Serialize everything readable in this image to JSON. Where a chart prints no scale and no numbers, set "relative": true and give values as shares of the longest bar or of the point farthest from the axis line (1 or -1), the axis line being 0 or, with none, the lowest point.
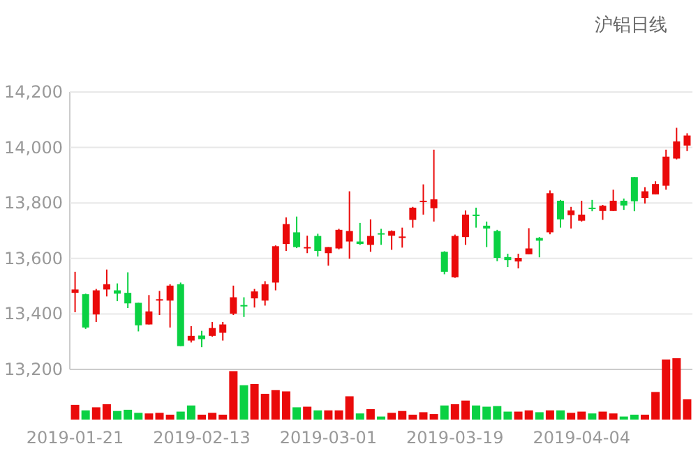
{
  "chart_data": [
    {
      "type": "candlestick",
      "title": "沪铝日线",
      "categories": [
        "2019-01-21",
        null,
        null,
        null,
        null,
        null,
        null,
        null,
        null,
        null,
        null,
        null,
        "2019-02-13",
        null,
        null,
        null,
        null,
        null,
        null,
        null,
        null,
        null,
        null,
        null,
        "2019-03-01",
        null,
        null,
        null,
        null,
        null,
        null,
        null,
        null,
        null,
        null,
        null,
        "2019-03-19",
        null,
        null,
        null,
        null,
        null,
        null,
        null,
        null,
        null,
        null,
        null,
        "2019-04-04",
        null,
        null,
        null,
        null,
        null,
        null,
        null,
        null,
        null,
        null
      ],
      "ohlc": [
        [
          13476,
          13552,
          13406,
          13488
        ],
        [
          13471,
          13473,
          13346,
          13351
        ],
        [
          13398,
          13490,
          13371,
          13485
        ],
        [
          13488,
          13560,
          13463,
          13507
        ],
        [
          13485,
          13510,
          13446,
          13473
        ],
        [
          13476,
          13550,
          13421,
          13438
        ],
        [
          13440,
          13440,
          13337,
          13359
        ],
        [
          13362,
          13468,
          13362,
          13409
        ],
        [
          13451,
          13483,
          13396,
          13453
        ],
        [
          13448,
          13507,
          13351,
          13502
        ],
        [
          13507,
          13513,
          13284,
          13284
        ],
        [
          13304,
          13356,
          13297,
          13321
        ],
        [
          13322,
          13339,
          13280,
          13309
        ],
        [
          13321,
          13371,
          13318,
          13349
        ],
        [
          13332,
          13371,
          13304,
          13362
        ],
        [
          13401,
          13502,
          13396,
          13460
        ],
        [
          13432,
          13460,
          13389,
          13430
        ],
        [
          13456,
          13490,
          13423,
          13481
        ],
        [
          13448,
          13518,
          13430,
          13507
        ],
        [
          13513,
          13647,
          13485,
          13644
        ],
        [
          13652,
          13748,
          13627,
          13724
        ],
        [
          13694,
          13751,
          13637,
          13641
        ],
        [
          13639,
          13682,
          13619,
          13641
        ],
        [
          13681,
          13689,
          13607,
          13627
        ],
        [
          13619,
          13641,
          13574,
          13641
        ],
        [
          13636,
          13707,
          13633,
          13703
        ],
        [
          13661,
          13842,
          13599,
          13699
        ],
        [
          13661,
          13728,
          13649,
          13652
        ],
        [
          13649,
          13741,
          13624,
          13681
        ],
        [
          13691,
          13707,
          13649,
          13689
        ],
        [
          13682,
          13701,
          13631,
          13699
        ],
        [
          13676,
          13711,
          13639,
          13679
        ],
        [
          13739,
          13786,
          13711,
          13783
        ],
        [
          13806,
          13867,
          13758,
          13808
        ],
        [
          13781,
          13992,
          13733,
          13813
        ],
        [
          13624,
          13626,
          13543,
          13552
        ],
        [
          13532,
          13686,
          13530,
          13681
        ],
        [
          13677,
          13773,
          13649,
          13758
        ],
        [
          13758,
          13783,
          13711,
          13755
        ],
        [
          13718,
          13733,
          13641,
          13708
        ],
        [
          13699,
          13703,
          13590,
          13602
        ],
        [
          13605,
          13617,
          13569,
          13594
        ],
        [
          13589,
          13617,
          13564,
          13602
        ],
        [
          13615,
          13709,
          13615,
          13636
        ],
        [
          13674,
          13677,
          13604,
          13664
        ],
        [
          13694,
          13845,
          13687,
          13835
        ],
        [
          13808,
          13811,
          13711,
          13741
        ],
        [
          13756,
          13786,
          13708,
          13773
        ],
        [
          13736,
          13808,
          13733,
          13758
        ],
        [
          13783,
          13811,
          13770,
          13781
        ],
        [
          13771,
          13793,
          13739,
          13790
        ],
        [
          13771,
          13848,
          13771,
          13808
        ],
        [
          13808,
          13816,
          13775,
          13791
        ],
        [
          13893,
          13893,
          13770,
          13806
        ],
        [
          13818,
          13857,
          13798,
          13842
        ],
        [
          13831,
          13878,
          13831,
          13868
        ],
        [
          13862,
          13992,
          13848,
          13967
        ],
        [
          13960,
          14071,
          13957,
          14022
        ],
        [
          14007,
          14051,
          13987,
          14043
        ]
      ],
      "ylim": [
        13200,
        14200
      ],
      "yticks": [
        {
          "value": 13200,
          "label": "13,200"
        },
        {
          "value": 13400,
          "label": "13,400"
        },
        {
          "value": 13600,
          "label": "13,600"
        },
        {
          "value": 13800,
          "label": "13,800"
        },
        {
          "value": 14000,
          "label": "14,000"
        },
        {
          "value": 14200,
          "label": "14,200"
        }
      ],
      "grid": "y",
      "tick_labels": "y"
    },
    {
      "type": "bar",
      "relative": true,
      "categories": [
        "2019-01-21",
        null,
        null,
        null,
        null,
        null,
        null,
        null,
        null,
        null,
        null,
        null,
        "2019-02-13",
        null,
        null,
        null,
        null,
        null,
        null,
        null,
        null,
        null,
        null,
        null,
        "2019-03-01",
        null,
        null,
        null,
        null,
        null,
        null,
        null,
        null,
        null,
        null,
        null,
        "2019-03-19",
        null,
        null,
        null,
        null,
        null,
        null,
        null,
        null,
        null,
        null,
        null,
        "2019-04-04",
        null,
        null,
        null,
        null,
        null,
        null,
        null,
        null,
        null,
        null
      ],
      "values": [
        0.24,
        0.15,
        0.2,
        0.25,
        0.14,
        0.16,
        0.11,
        0.1,
        0.11,
        0.08,
        0.13,
        0.23,
        0.08,
        0.11,
        0.08,
        0.79,
        0.56,
        0.58,
        0.42,
        0.48,
        0.46,
        0.2,
        0.21,
        0.15,
        0.15,
        0.15,
        0.38,
        0.1,
        0.17,
        0.05,
        0.11,
        0.14,
        0.08,
        0.12,
        0.09,
        0.23,
        0.25,
        0.31,
        0.23,
        0.21,
        0.22,
        0.13,
        0.13,
        0.15,
        0.12,
        0.15,
        0.15,
        0.11,
        0.13,
        0.1,
        0.13,
        0.1,
        0.05,
        0.08,
        0.08,
        0.45,
        0.98,
        1,
        0.33
      ],
      "colors": [
        "#ea0a0a",
        "#0ad143",
        "#ea0a0a",
        "#ea0a0a",
        "#0ad143",
        "#0ad143",
        "#0ad143",
        "#ea0a0a",
        "#ea0a0a",
        "#ea0a0a",
        "#0ad143",
        "#0ad143",
        "#ea0a0a",
        "#ea0a0a",
        "#ea0a0a",
        "#ea0a0a",
        "#0ad143",
        "#ea0a0a",
        "#ea0a0a",
        "#ea0a0a",
        "#ea0a0a",
        "#0ad143",
        "#ea0a0a",
        "#0ad143",
        "#ea0a0a",
        "#ea0a0a",
        "#ea0a0a",
        "#0ad143",
        "#ea0a0a",
        "#0ad143",
        "#ea0a0a",
        "#ea0a0a",
        "#ea0a0a",
        "#ea0a0a",
        "#ea0a0a",
        "#0ad143",
        "#ea0a0a",
        "#ea0a0a",
        "#0ad143",
        "#0ad143",
        "#0ad143",
        "#0ad143",
        "#ea0a0a",
        "#ea0a0a",
        "#0ad143",
        "#ea0a0a",
        "#0ad143",
        "#ea0a0a",
        "#ea0a0a",
        "#0ad143",
        "#ea0a0a",
        "#ea0a0a",
        "#0ad143",
        "#0ad143",
        "#ea0a0a",
        "#ea0a0a",
        "#ea0a0a",
        "#ea0a0a",
        "#ea0a0a"
      ],
      "tick_labels": "x"
    }
  ]
}
